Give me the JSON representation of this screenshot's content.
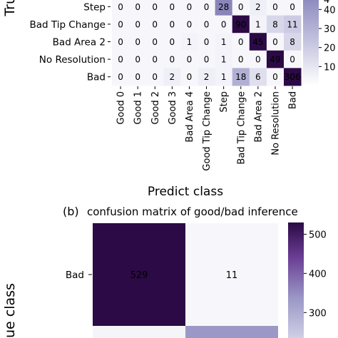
{
  "chart_data": [
    {
      "type": "heatmap",
      "title": "",
      "xlabel": "Predict class",
      "ylabel": "Tru",
      "x_categories": [
        "Good 0",
        "Good 1",
        "Good 2",
        "Good 3",
        "Bad Area 4",
        "Good Tip Change",
        "Step",
        "Bad Tip Change",
        "Bad Area 2",
        "No Resolution",
        "Bad"
      ],
      "x_tick_labels": [
        "Good",
        "Good",
        "Good",
        "Good",
        "Bad Area",
        "Good Tip Change",
        "Step",
        "Bad Tip Change",
        "Bad Area 2",
        "No Resolution",
        "Bad"
      ],
      "x_tick_numbers": [
        "0",
        "1",
        "2",
        "3",
        "4",
        "",
        "",
        "",
        "",
        "",
        ""
      ],
      "y_categories": [
        "Step",
        "Bad Tip Change",
        "Bad Area 2",
        "No Resolution",
        "Bad"
      ],
      "values": [
        [
          0,
          0,
          0,
          0,
          0,
          0,
          28,
          0,
          2,
          0,
          0
        ],
        [
          0,
          0,
          0,
          0,
          0,
          0,
          0,
          90,
          1,
          8,
          11
        ],
        [
          0,
          0,
          0,
          0,
          1,
          0,
          1,
          0,
          45,
          0,
          8
        ],
        [
          0,
          0,
          0,
          0,
          0,
          0,
          1,
          0,
          0,
          49,
          0
        ],
        [
          0,
          0,
          0,
          2,
          0,
          2,
          1,
          18,
          6,
          0,
          306
        ]
      ],
      "colorbar_ticks": [
        10,
        20,
        30,
        40
      ],
      "colorbar_top_label": "4",
      "color_range": [
        0,
        45
      ]
    },
    {
      "type": "heatmap",
      "panel_label": "(b)",
      "title": "confusion matrix of good/bad inference",
      "ylabel": "ue class",
      "y_categories": [
        "Bad"
      ],
      "values": [
        [
          529,
          11
        ]
      ],
      "colorbar_ticks": [
        500,
        400,
        300
      ],
      "color_range": [
        11,
        529
      ]
    }
  ],
  "colors": {
    "cmap_light": "#f7f7fb",
    "cmap_mid": "#8e8cc0",
    "cmap_dark": "#2b0a45",
    "bottom_row_fill": "#9b98c8"
  }
}
